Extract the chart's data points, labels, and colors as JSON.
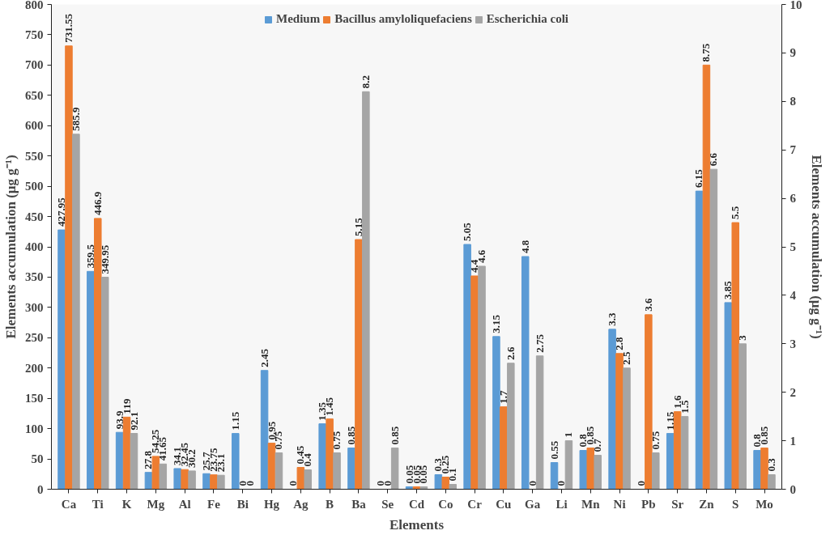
{
  "chart_data": {
    "type": "bar",
    "xlabel": "Elements",
    "ylabel": "Elements accumulation (µg g⁻¹)",
    "y2label": "Elements accumulation (µg g⁻¹)",
    "categories": [
      "Ca",
      "Ti",
      "K",
      "Mg",
      "Al",
      "Fe",
      "Bi",
      "Hg",
      "Ag",
      "B",
      "Ba",
      "Se",
      "Cd",
      "Co",
      "Cr",
      "Cu",
      "Ga",
      "Li",
      "Mn",
      "Ni",
      "Pb",
      "Sr",
      "Zn",
      "S",
      "Mo"
    ],
    "series": [
      {
        "name": "Medium",
        "color": "#5b9bd5",
        "values": [
          427.95,
          359.5,
          93.9,
          27.8,
          34.1,
          25.7,
          null,
          null,
          null,
          null,
          null,
          null,
          null,
          null,
          null,
          null,
          null,
          null,
          null,
          null,
          null,
          null,
          null,
          null,
          null
        ]
      },
      {
        "name": "Bacillus amyloliquefaciens",
        "color": "#ed7d31",
        "values": [
          731.55,
          446.9,
          119,
          54.25,
          32.45,
          23.75,
          null,
          null,
          null,
          null,
          null,
          null,
          null,
          null,
          null,
          null,
          null,
          null,
          null,
          null,
          null,
          null,
          null,
          null,
          null
        ]
      },
      {
        "name": "Escherichia coli",
        "color": "#a5a5a5",
        "values": [
          585.9,
          349.95,
          92.1,
          41.65,
          30.2,
          23.1,
          null,
          null,
          null,
          null,
          null,
          null,
          null,
          null,
          null,
          null,
          null,
          null,
          null,
          null,
          null,
          null,
          null,
          null,
          null
        ]
      },
      {
        "color": "#5b9bd5",
        "axis": "y2",
        "values": [
          null,
          null,
          null,
          null,
          null,
          null,
          1.15,
          2.45,
          0,
          1.35,
          0.85,
          0,
          0.05,
          0.3,
          5.05,
          3.15,
          4.8,
          0.55,
          0.8,
          3.3,
          0,
          1.15,
          6.15,
          3.85,
          0.8
        ]
      },
      {
        "color": "#ed7d31",
        "axis": "y2",
        "values": [
          null,
          null,
          null,
          null,
          null,
          null,
          0,
          0.95,
          0.45,
          1.45,
          5.15,
          0,
          0.05,
          0.25,
          4.4,
          1.7,
          0,
          0,
          0.85,
          2.8,
          3.6,
          1.6,
          8.75,
          5.5,
          0.85
        ]
      },
      {
        "color": "#a5a5a5",
        "axis": "y2",
        "values": [
          null,
          null,
          null,
          null,
          null,
          null,
          0,
          0.75,
          0.4,
          0.75,
          8.2,
          0.85,
          0.05,
          0.1,
          4.6,
          2.6,
          2.75,
          1,
          0.7,
          2.5,
          0.75,
          1.5,
          6.6,
          3,
          0.3
        ]
      }
    ],
    "ylim": [
      0,
      800
    ],
    "yticks": [
      0,
      50,
      100,
      150,
      200,
      250,
      300,
      350,
      400,
      450,
      500,
      550,
      600,
      650,
      700,
      750,
      800
    ],
    "y2lim": [
      0,
      10
    ],
    "y2ticks": [
      0,
      1,
      2,
      3,
      4,
      5,
      6,
      7,
      8,
      9,
      10
    ],
    "data_labels": true,
    "legend": "top",
    "grid": false
  }
}
